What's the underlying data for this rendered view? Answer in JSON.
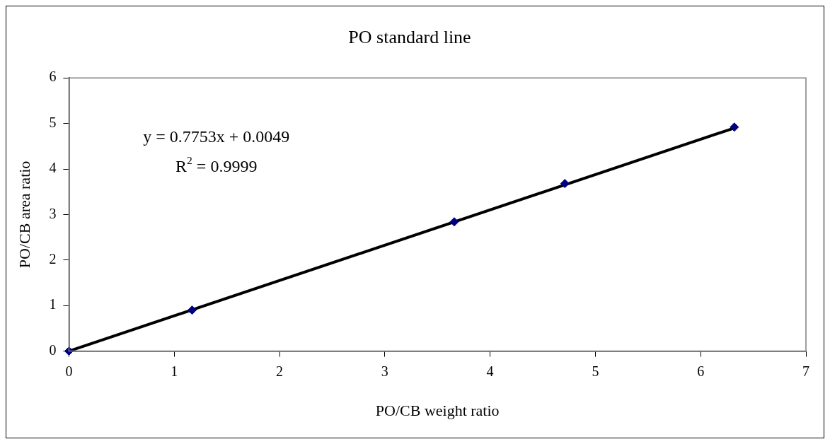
{
  "chart_data": {
    "type": "scatter",
    "title": "PO standard line",
    "xlabel": "PO/CB weight ratio",
    "ylabel": "PO/CB area ratio",
    "x": [
      0,
      1.17,
      3.66,
      4.71,
      6.32
    ],
    "series": [
      {
        "color": "#000080",
        "values": [
          0,
          0.9,
          2.84,
          3.68,
          4.92
        ],
        "marker": "diamond"
      },
      {
        "type": "line",
        "color": "#000000",
        "x": [
          0,
          6.32
        ],
        "values": [
          0,
          4.9
        ],
        "marker": "none"
      }
    ],
    "xlim": [
      0,
      7
    ],
    "xticks": [
      0,
      1,
      2,
      3,
      4,
      5,
      6,
      7
    ],
    "ylim": [
      0,
      6
    ],
    "yticks": [
      0,
      1,
      2,
      3,
      4,
      5,
      6
    ],
    "grid": false,
    "legend": false,
    "annotations": [
      "y = 0.7753x + 0.0049",
      "R$^{2}$ = 0.9999"
    ]
  }
}
